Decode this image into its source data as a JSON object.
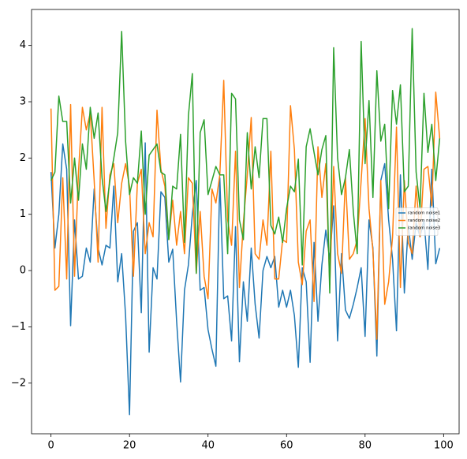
{
  "chart_data": {
    "type": "line",
    "x": [
      0,
      1,
      2,
      3,
      4,
      5,
      6,
      7,
      8,
      9,
      10,
      11,
      12,
      13,
      14,
      15,
      16,
      17,
      18,
      19,
      20,
      21,
      22,
      23,
      24,
      25,
      26,
      27,
      28,
      29,
      30,
      31,
      32,
      33,
      34,
      35,
      36,
      37,
      38,
      39,
      40,
      41,
      42,
      43,
      44,
      45,
      46,
      47,
      48,
      49,
      50,
      51,
      52,
      53,
      54,
      55,
      56,
      57,
      58,
      59,
      60,
      61,
      62,
      63,
      64,
      65,
      66,
      67,
      68,
      69,
      70,
      71,
      72,
      73,
      74,
      75,
      76,
      77,
      78,
      79,
      80,
      81,
      82,
      83,
      84,
      85,
      86,
      87,
      88,
      89,
      90,
      91,
      92,
      93,
      94,
      95,
      96,
      97,
      98,
      99
    ],
    "series": [
      {
        "name": "random noise1",
        "color": "#1f77b4",
        "values": [
          1.75,
          0.4,
          1.0,
          2.25,
          1.8,
          -0.98,
          0.9,
          -0.15,
          -0.1,
          0.4,
          0.15,
          1.45,
          0.4,
          0.1,
          0.45,
          0.4,
          1.5,
          -0.2,
          0.3,
          -0.8,
          -2.56,
          0.7,
          0.85,
          -0.75,
          2.27,
          -1.45,
          0.05,
          -0.15,
          1.4,
          1.3,
          0.15,
          0.38,
          -0.9,
          -1.98,
          -0.35,
          0.1,
          1.0,
          1.6,
          -0.35,
          -0.3,
          -1.05,
          -1.4,
          -1.7,
          1.65,
          -0.5,
          -0.45,
          -1.25,
          0.78,
          -1.62,
          -0.2,
          -0.9,
          0.4,
          -0.6,
          -1.2,
          0.0,
          0.25,
          0.05,
          0.25,
          -0.65,
          -0.35,
          -0.65,
          -0.35,
          -0.8,
          -1.72,
          0.05,
          -0.2,
          -1.63,
          0.5,
          -0.9,
          0.1,
          0.72,
          0.2,
          1.15,
          -1.25,
          0.3,
          -0.7,
          -0.85,
          -0.6,
          -0.3,
          0.05,
          -1.17,
          0.9,
          0.4,
          -1.52,
          1.6,
          1.9,
          0.9,
          0.2,
          -1.07,
          1.7,
          -0.4,
          0.8,
          0.2,
          0.85,
          0.6,
          0.9,
          0.02,
          1.8,
          0.12,
          0.4
        ]
      },
      {
        "name": "random noise2",
        "color": "#ff7f0e",
        "values": [
          2.88,
          -0.35,
          -0.28,
          1.65,
          -0.15,
          2.95,
          -0.1,
          1.75,
          2.9,
          2.5,
          2.8,
          1.6,
          0.15,
          2.9,
          0.75,
          1.7,
          1.9,
          0.85,
          1.55,
          1.9,
          1.5,
          -0.1,
          1.55,
          1.8,
          0.3,
          0.85,
          0.6,
          2.85,
          1.8,
          1.5,
          0.55,
          1.25,
          0.45,
          1.05,
          0.3,
          1.65,
          1.55,
          -0.05,
          1.05,
          -0.1,
          -0.5,
          1.45,
          1.2,
          1.7,
          3.38,
          0.9,
          0.45,
          2.12,
          -0.3,
          0.85,
          1.7,
          2.72,
          0.3,
          0.2,
          0.9,
          0.45,
          2.12,
          -0.15,
          -0.15,
          0.55,
          0.5,
          2.93,
          2.15,
          0.15,
          -0.25,
          0.7,
          0.9,
          -0.55,
          2.2,
          1.3,
          1.9,
          -0.25,
          1.85,
          0.3,
          -0.05,
          1.65,
          0.2,
          0.3,
          0.55,
          1.6,
          2.7,
          1.1,
          0.35,
          -1.22,
          1.6,
          -0.6,
          -0.2,
          0.6,
          2.55,
          -0.3,
          1.6,
          0.5,
          0.3,
          1.5,
          0.6,
          1.8,
          1.85,
          1.15,
          3.17,
          2.35
        ]
      },
      {
        "name": "random noise3",
        "color": "#2ca02c",
        "values": [
          1.6,
          1.75,
          3.1,
          2.65,
          2.65,
          1.2,
          2.0,
          1.25,
          2.25,
          1.8,
          2.9,
          2.35,
          2.8,
          1.65,
          1.05,
          1.6,
          2.0,
          2.45,
          4.25,
          2.3,
          1.35,
          1.65,
          1.55,
          2.48,
          1.0,
          2.05,
          2.15,
          2.25,
          1.75,
          1.7,
          0.55,
          1.5,
          1.45,
          2.42,
          0.5,
          2.75,
          3.5,
          -0.05,
          2.45,
          2.68,
          1.35,
          1.6,
          1.85,
          1.7,
          1.7,
          0.3,
          3.15,
          3.05,
          0.9,
          0.55,
          2.45,
          1.45,
          2.2,
          1.65,
          2.7,
          2.7,
          0.8,
          0.65,
          0.95,
          0.5,
          1.1,
          1.5,
          1.4,
          1.98,
          0.1,
          2.2,
          2.52,
          2.1,
          1.7,
          2.15,
          2.4,
          -0.4,
          3.96,
          2.0,
          1.35,
          1.65,
          2.15,
          1.05,
          0.3,
          4.07,
          1.9,
          3.02,
          1.3,
          3.55,
          2.3,
          2.6,
          1.1,
          3.2,
          2.6,
          3.3,
          1.4,
          1.5,
          4.3,
          1.75,
          1.1,
          3.15,
          2.1,
          2.6,
          1.6,
          2.35
        ]
      }
    ],
    "xlim": [
      -4.95,
      103.95
    ],
    "xticks": [
      0,
      20,
      40,
      60,
      80,
      100
    ],
    "ylim": [
      -2.9,
      4.64
    ],
    "yticks": [
      {
        "value": -2,
        "label": "−2"
      },
      {
        "value": -1,
        "label": "−1"
      },
      0,
      1,
      2,
      3,
      4
    ],
    "legend": "center right"
  }
}
